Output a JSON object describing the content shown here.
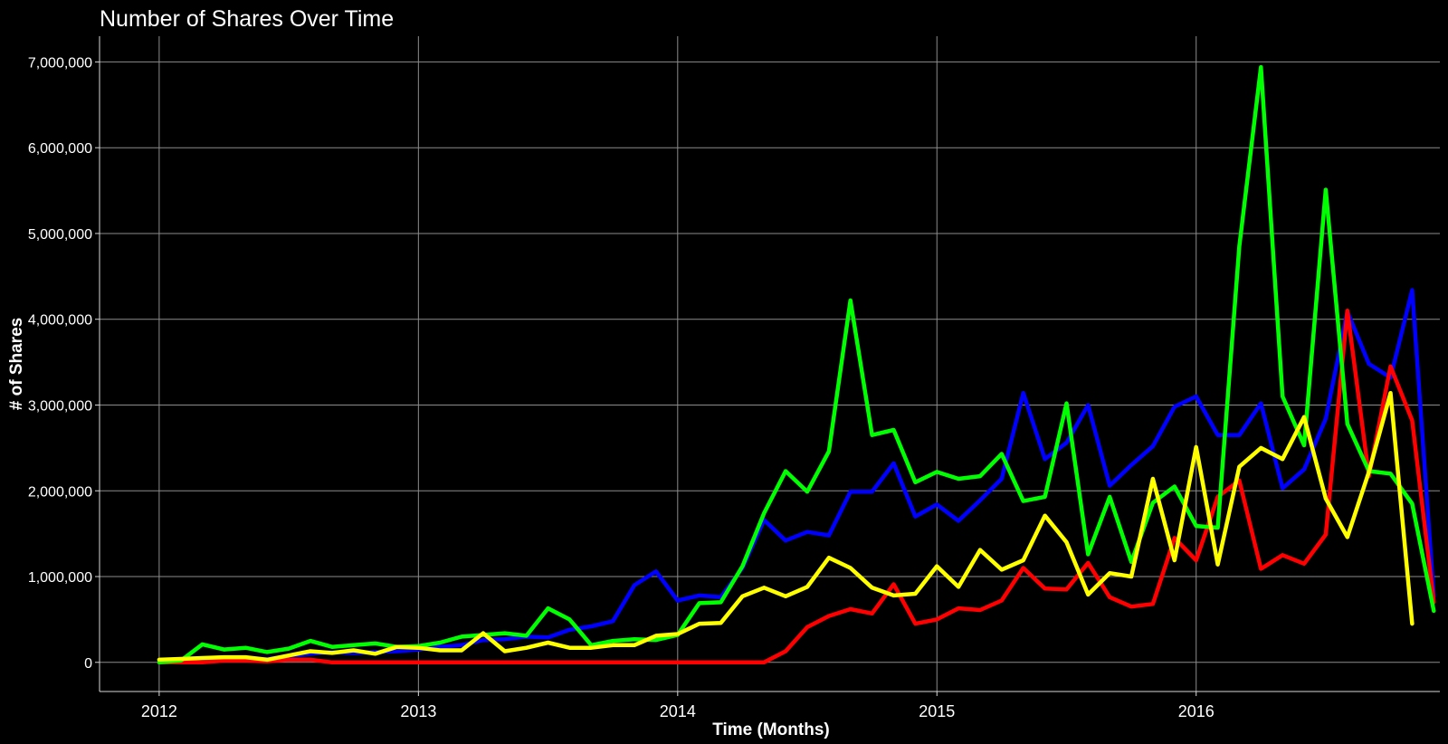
{
  "chart_data": {
    "type": "line",
    "title": "Number of Shares Over Time",
    "xlabel": "Time (Months)",
    "ylabel": "# of Shares",
    "xlim": [
      2011.77,
      2016.94
    ],
    "ylim": [
      -340000,
      7300000
    ],
    "x_ticks": [
      {
        "value": 2012,
        "label": "2012"
      },
      {
        "value": 2013,
        "label": "2013"
      },
      {
        "value": 2014,
        "label": "2014"
      },
      {
        "value": 2015,
        "label": "2015"
      },
      {
        "value": 2016,
        "label": "2016"
      }
    ],
    "y_ticks": [
      {
        "value": 0,
        "label": "0"
      },
      {
        "value": 1000000,
        "label": "1,000,000"
      },
      {
        "value": 2000000,
        "label": "2,000,000"
      },
      {
        "value": 3000000,
        "label": "3,000,000"
      },
      {
        "value": 4000000,
        "label": "4,000,000"
      },
      {
        "value": 5000000,
        "label": "5,000,000"
      },
      {
        "value": 6000000,
        "label": "6,000,000"
      },
      {
        "value": 7000000,
        "label": "7,000,000"
      }
    ],
    "grid": true,
    "legend": "none",
    "x_start": 2012,
    "x_step": 0.08333,
    "series": [
      {
        "color": "#0000ff",
        "values": [
          0,
          20000,
          30000,
          40000,
          50000,
          40000,
          70000,
          100000,
          120000,
          110000,
          120000,
          130000,
          150000,
          180000,
          200000,
          260000,
          270000,
          300000,
          290000,
          380000,
          420000,
          480000,
          900000,
          1060000,
          720000,
          780000,
          760000,
          1100000,
          1660000,
          1420000,
          1520000,
          1480000,
          1990000,
          1990000,
          2320000,
          1700000,
          1840000,
          1650000,
          1890000,
          2140000,
          3140000,
          2370000,
          2560000,
          3000000,
          2060000,
          2300000,
          2520000,
          2980000,
          3100000,
          2650000,
          2650000,
          3020000,
          2030000,
          2250000,
          2840000,
          4090000,
          3480000,
          3320000,
          4340000,
          770000
        ]
      },
      {
        "color": "#ff0000",
        "values": [
          0,
          0,
          0,
          20000,
          20000,
          10000,
          30000,
          30000,
          0,
          0,
          0,
          0,
          0,
          0,
          0,
          0,
          0,
          0,
          0,
          0,
          0,
          0,
          0,
          0,
          0,
          0,
          0,
          0,
          0,
          130000,
          410000,
          540000,
          620000,
          570000,
          910000,
          450000,
          500000,
          630000,
          610000,
          720000,
          1100000,
          860000,
          850000,
          1160000,
          760000,
          650000,
          680000,
          1450000,
          1190000,
          1930000,
          2120000,
          1090000,
          1250000,
          1150000,
          1490000,
          4100000,
          2170000,
          3450000,
          2820000,
          700000
        ]
      },
      {
        "color": "#00ff00",
        "values": [
          0,
          20000,
          210000,
          150000,
          170000,
          120000,
          160000,
          250000,
          180000,
          200000,
          220000,
          180000,
          190000,
          230000,
          300000,
          320000,
          340000,
          310000,
          630000,
          500000,
          200000,
          250000,
          270000,
          260000,
          320000,
          690000,
          700000,
          1120000,
          1740000,
          2230000,
          1990000,
          2460000,
          4220000,
          2650000,
          2710000,
          2100000,
          2220000,
          2140000,
          2170000,
          2430000,
          1880000,
          1930000,
          3020000,
          1260000,
          1930000,
          1170000,
          1860000,
          2050000,
          1590000,
          1570000,
          4850000,
          6940000,
          3100000,
          2530000,
          5510000,
          2780000,
          2230000,
          2200000,
          1850000,
          600000
        ]
      },
      {
        "color": "#ffff00",
        "values": [
          30000,
          40000,
          50000,
          60000,
          60000,
          30000,
          80000,
          130000,
          110000,
          140000,
          100000,
          180000,
          170000,
          140000,
          140000,
          340000,
          130000,
          170000,
          230000,
          170000,
          170000,
          200000,
          200000,
          310000,
          330000,
          450000,
          460000,
          770000,
          870000,
          770000,
          880000,
          1220000,
          1100000,
          870000,
          780000,
          800000,
          1120000,
          880000,
          1310000,
          1080000,
          1190000,
          1710000,
          1400000,
          790000,
          1040000,
          1000000,
          2140000,
          1190000,
          2510000,
          1140000,
          2280000,
          2500000,
          2370000,
          2860000,
          1910000,
          1460000,
          2220000,
          3140000,
          450000
        ]
      }
    ]
  }
}
